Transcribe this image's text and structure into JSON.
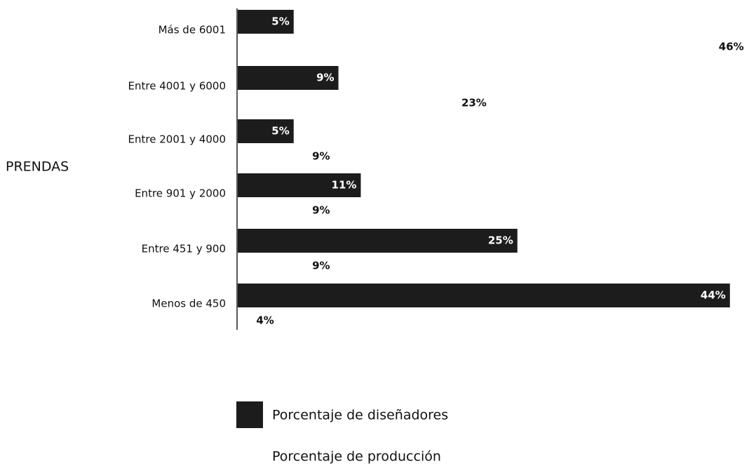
{
  "chart_data": {
    "type": "barh",
    "y_label": "PRENDAS",
    "categories": [
      "Más de 6001",
      "Entre 4001 y 6000",
      "Entre 2001 y 4000",
      "Entre 901 y 2000",
      "Entre  451 y 900",
      "Menos de 450"
    ],
    "series": [
      {
        "name": "Porcentaje de diseñadores",
        "color": "#1c1c1c",
        "values": [
          5,
          9,
          5,
          11,
          25,
          44
        ],
        "value_labels": [
          "5%",
          "9%",
          "5%",
          "11%",
          "25%",
          "44%"
        ]
      },
      {
        "name": "Porcentaje de producción",
        "color": "#ffffff",
        "values": [
          46,
          23,
          9,
          9,
          9,
          4
        ],
        "value_labels": [
          "46%",
          "23%",
          "9%",
          "9%",
          "9%",
          "4%"
        ]
      }
    ]
  }
}
